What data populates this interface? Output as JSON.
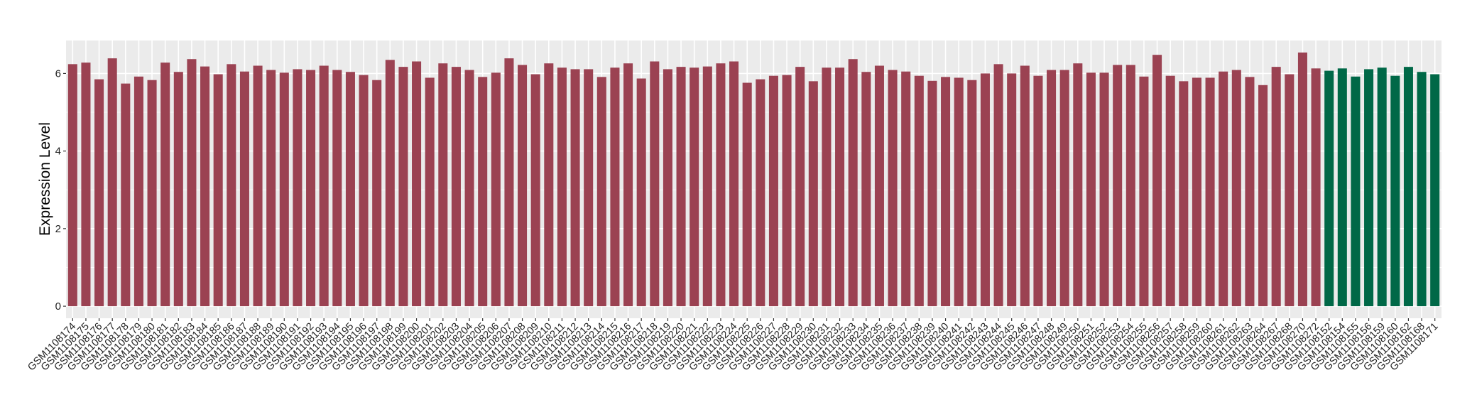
{
  "chart_data": {
    "type": "bar",
    "title": "",
    "xlabel": "",
    "ylabel": "Expression Level",
    "ylim": [
      -0.31,
      6.85
    ],
    "yticks": [
      0,
      2,
      4,
      6
    ],
    "grid": true,
    "legend": "none",
    "colors": {
      "group1": "#9B4252",
      "group2": "#006847",
      "panel": "#EBEBEB",
      "grid": "#FFFFFF"
    },
    "categories": [
      "GSM1108174",
      "GSM1108175",
      "GSM1108176",
      "GSM1108177",
      "GSM1108178",
      "GSM1108179",
      "GSM1108180",
      "GSM1108181",
      "GSM1108182",
      "GSM1108183",
      "GSM1108184",
      "GSM1108185",
      "GSM1108186",
      "GSM1108187",
      "GSM1108188",
      "GSM1108189",
      "GSM1108190",
      "GSM1108191",
      "GSM1108192",
      "GSM1108193",
      "GSM1108194",
      "GSM1108195",
      "GSM1108196",
      "GSM1108197",
      "GSM1108198",
      "GSM1108199",
      "GSM1108200",
      "GSM1108201",
      "GSM1108202",
      "GSM1108203",
      "GSM1108204",
      "GSM1108205",
      "GSM1108206",
      "GSM1108207",
      "GSM1108208",
      "GSM1108209",
      "GSM1108210",
      "GSM1108211",
      "GSM1108212",
      "GSM1108213",
      "GSM1108214",
      "GSM1108215",
      "GSM1108216",
      "GSM1108217",
      "GSM1108218",
      "GSM1108219",
      "GSM1108220",
      "GSM1108221",
      "GSM1108222",
      "GSM1108223",
      "GSM1108224",
      "GSM1108225",
      "GSM1108226",
      "GSM1108227",
      "GSM1108228",
      "GSM1108229",
      "GSM1108230",
      "GSM1108231",
      "GSM1108232",
      "GSM1108233",
      "GSM1108234",
      "GSM1108235",
      "GSM1108236",
      "GSM1108237",
      "GSM1108238",
      "GSM1108239",
      "GSM1108240",
      "GSM1108241",
      "GSM1108242",
      "GSM1108243",
      "GSM1108244",
      "GSM1108245",
      "GSM1108246",
      "GSM1108247",
      "GSM1108248",
      "GSM1108249",
      "GSM1108250",
      "GSM1108251",
      "GSM1108252",
      "GSM1108253",
      "GSM1108254",
      "GSM1108255",
      "GSM1108256",
      "GSM1108257",
      "GSM1108258",
      "GSM1108259",
      "GSM1108260",
      "GSM1108261",
      "GSM1108262",
      "GSM1108263",
      "GSM1108264",
      "GSM1108267",
      "GSM1108268",
      "GSM1108270",
      "GSM1108272",
      "GSM1108152",
      "GSM1108154",
      "GSM1108155",
      "GSM1108156",
      "GSM1108159",
      "GSM1108160",
      "GSM1108162",
      "GSM1108168",
      "GSM1108171"
    ],
    "values": [
      6.24,
      6.28,
      5.85,
      6.39,
      5.74,
      5.92,
      5.83,
      6.28,
      6.04,
      6.37,
      6.18,
      5.98,
      6.24,
      6.05,
      6.2,
      6.09,
      6.02,
      6.11,
      6.09,
      6.2,
      6.09,
      6.04,
      5.96,
      5.83,
      6.35,
      6.17,
      6.31,
      5.89,
      6.26,
      6.17,
      6.09,
      5.91,
      6.02,
      6.39,
      6.22,
      5.98,
      6.26,
      6.15,
      6.11,
      6.11,
      5.91,
      6.15,
      6.26,
      5.87,
      6.31,
      6.11,
      6.17,
      6.15,
      6.18,
      6.26,
      6.31,
      5.76,
      5.85,
      5.94,
      5.96,
      6.17,
      5.8,
      6.15,
      6.15,
      6.37,
      6.04,
      6.2,
      6.09,
      6.05,
      5.94,
      5.81,
      5.91,
      5.89,
      5.83,
      6.0,
      6.24,
      6.0,
      6.2,
      5.94,
      6.09,
      6.09,
      6.26,
      6.02,
      6.02,
      6.22,
      6.22,
      5.92,
      6.48,
      5.94,
      5.8,
      5.89,
      5.89,
      6.05,
      6.09,
      5.91,
      5.7,
      6.17,
      5.98,
      6.54,
      6.13,
      6.07,
      6.13,
      5.92,
      6.11,
      6.15,
      5.94,
      6.17,
      6.04,
      5.98
    ],
    "groups": [
      "group1",
      "group1",
      "group1",
      "group1",
      "group1",
      "group1",
      "group1",
      "group1",
      "group1",
      "group1",
      "group1",
      "group1",
      "group1",
      "group1",
      "group1",
      "group1",
      "group1",
      "group1",
      "group1",
      "group1",
      "group1",
      "group1",
      "group1",
      "group1",
      "group1",
      "group1",
      "group1",
      "group1",
      "group1",
      "group1",
      "group1",
      "group1",
      "group1",
      "group1",
      "group1",
      "group1",
      "group1",
      "group1",
      "group1",
      "group1",
      "group1",
      "group1",
      "group1",
      "group1",
      "group1",
      "group1",
      "group1",
      "group1",
      "group1",
      "group1",
      "group1",
      "group1",
      "group1",
      "group1",
      "group1",
      "group1",
      "group1",
      "group1",
      "group1",
      "group1",
      "group1",
      "group1",
      "group1",
      "group1",
      "group1",
      "group1",
      "group1",
      "group1",
      "group1",
      "group1",
      "group1",
      "group1",
      "group1",
      "group1",
      "group1",
      "group1",
      "group1",
      "group1",
      "group1",
      "group1",
      "group1",
      "group1",
      "group1",
      "group1",
      "group1",
      "group1",
      "group1",
      "group1",
      "group1",
      "group1",
      "group1",
      "group1",
      "group1",
      "group1",
      "group1",
      "group2",
      "group2",
      "group2",
      "group2",
      "group2",
      "group2",
      "group2",
      "group2",
      "group2"
    ]
  }
}
